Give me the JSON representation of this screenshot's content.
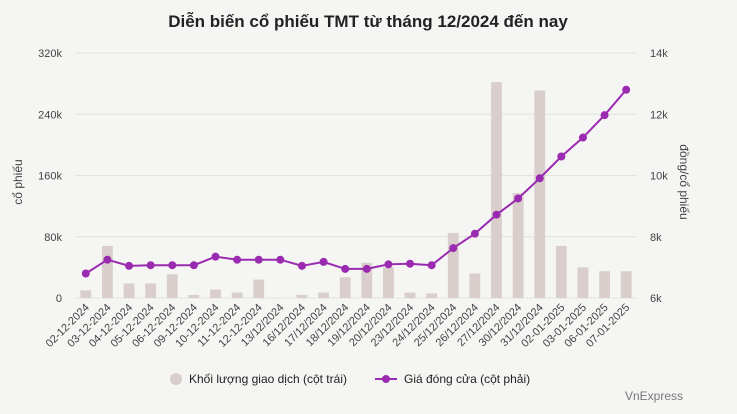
{
  "chart_data": {
    "type": "bar+line",
    "title": "Diễn biến cổ phiếu TMT từ tháng 12/2024 đến nay",
    "categories": [
      "02-12-2024",
      "03-12-2024",
      "04-12-2024",
      "05-12-2024",
      "06-12-2024",
      "09-12-2024",
      "10-12-2024",
      "11-12-2024",
      "12-12-2024",
      "13/12/2024",
      "16/12/2024",
      "17/12/2024",
      "18/12/2024",
      "19/12/2024",
      "20/12/2024",
      "23/12/2024",
      "24/12/2024",
      "25/12/2024",
      "26/12/2024",
      "27/12/2024",
      "30/12/2024",
      "31/12/2024",
      "02-01-2025",
      "03-01-2025",
      "06-01-2025",
      "07-01-2025"
    ],
    "series": [
      {
        "name": "Khối lượng giao dịch (cột trái)",
        "type": "bar",
        "axis": "left",
        "color": "#d9cecb",
        "values": [
          10000,
          68000,
          19000,
          19000,
          31000,
          4000,
          11000,
          7000,
          24000,
          0,
          4000,
          7000,
          27000,
          46000,
          40000,
          7000,
          6000,
          85000,
          32000,
          282000,
          137000,
          271000,
          68000,
          40000,
          35000,
          35000
        ]
      },
      {
        "name": "Giá đóng cửa (cột phải)",
        "type": "line",
        "axis": "right",
        "color": "#9a2bb0",
        "values": [
          6800,
          7250,
          7050,
          7070,
          7070,
          7070,
          7350,
          7250,
          7250,
          7250,
          7050,
          7180,
          6950,
          6950,
          7100,
          7120,
          7070,
          7630,
          8100,
          8720,
          9250,
          9910,
          10620,
          11240,
          11970,
          12800
        ]
      }
    ],
    "y_left": {
      "label": "cổ phiếu",
      "min": 0,
      "max": 320000,
      "ticks": [
        "0",
        "80k",
        "160k",
        "240k",
        "320k"
      ],
      "tick_values": [
        0,
        80000,
        160000,
        240000,
        320000
      ]
    },
    "y_right": {
      "label": "đồng/cổ phiếu",
      "min": 6000,
      "max": 14000,
      "ticks": [
        "6k",
        "8k",
        "10k",
        "12k",
        "14k"
      ],
      "tick_values": [
        6000,
        8000,
        10000,
        12000,
        14000
      ]
    },
    "grid": true,
    "legend_position": "bottom-center",
    "source": "VnExpress"
  }
}
